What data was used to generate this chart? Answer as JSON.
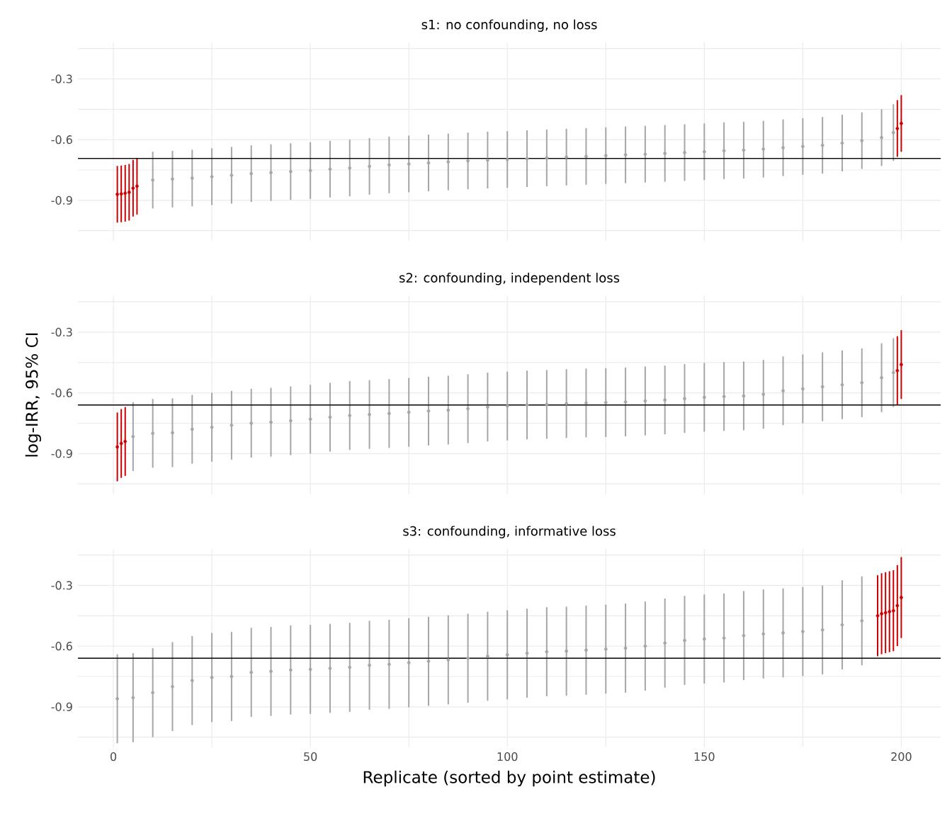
{
  "chart_data": [
    {
      "type": "scatter",
      "title": "s1: no confounding, no loss",
      "xlim": [
        -9,
        210
      ],
      "ylim": [
        -1.1,
        -0.12
      ],
      "xticks": [
        0,
        {
          "value": 25,
          "label": null
        },
        50,
        {
          "value": 75,
          "label": null
        },
        100,
        {
          "value": 125,
          "label": null
        },
        150,
        {
          "value": 175,
          "label": null
        },
        200
      ],
      "yticks": [
        {
          "value": -1.05,
          "label": null
        },
        -0.9,
        {
          "value": -0.75,
          "label": null
        },
        -0.6,
        {
          "value": -0.45,
          "label": null
        },
        -0.3,
        {
          "value": -0.15,
          "label": null
        }
      ],
      "grid": true,
      "marker": "circle",
      "tick_labels": "y",
      "ref_lines": [
        {
          "axis": "y",
          "value": -0.693,
          "color": "#000000"
        }
      ],
      "series": [
        {
          "color": "#a6a6a6",
          "x": [
            10,
            15,
            20,
            25,
            30,
            35,
            40,
            45,
            50,
            55,
            60,
            65,
            70,
            75,
            80,
            85,
            90,
            95,
            100,
            105,
            110,
            115,
            120,
            125,
            130,
            135,
            140,
            145,
            150,
            155,
            160,
            165,
            170,
            175,
            180,
            185,
            190,
            195,
            198
          ],
          "values": [
            -0.8,
            -0.795,
            -0.79,
            -0.783,
            -0.776,
            -0.768,
            -0.763,
            -0.758,
            -0.753,
            -0.746,
            -0.74,
            -0.732,
            -0.725,
            -0.72,
            -0.715,
            -0.71,
            -0.705,
            -0.701,
            -0.698,
            -0.694,
            -0.69,
            -0.686,
            -0.683,
            -0.679,
            -0.675,
            -0.672,
            -0.668,
            -0.664,
            -0.66,
            -0.655,
            -0.652,
            -0.647,
            -0.64,
            -0.634,
            -0.628,
            -0.617,
            -0.605,
            -0.59,
            -0.565
          ],
          "errors": [
            0.14,
            0.14,
            0.14,
            0.14,
            0.14,
            0.14,
            0.14,
            0.14,
            0.14,
            0.14,
            0.14,
            0.14,
            0.14,
            0.14,
            0.14,
            0.14,
            0.14,
            0.14,
            0.14,
            0.14,
            0.14,
            0.14,
            0.14,
            0.14,
            0.14,
            0.14,
            0.14,
            0.14,
            0.14,
            0.14,
            0.14,
            0.14,
            0.14,
            0.14,
            0.14,
            0.14,
            0.14,
            0.14,
            0.14
          ]
        },
        {
          "color": "#cc0000",
          "x": [
            1,
            2,
            3,
            4,
            5,
            6,
            199,
            200
          ],
          "values": [
            -0.87,
            -0.868,
            -0.865,
            -0.86,
            -0.84,
            -0.83,
            -0.545,
            -0.52
          ],
          "errors": [
            0.14,
            0.14,
            0.14,
            0.14,
            0.14,
            0.14,
            0.14,
            0.14
          ]
        }
      ]
    },
    {
      "type": "scatter",
      "title": "s2: confounding, independent loss",
      "ylabel": "log-IRR, 95% CI",
      "xlim": [
        -9,
        210
      ],
      "ylim": [
        -1.1,
        -0.12
      ],
      "xticks": [
        0,
        {
          "value": 25,
          "label": null
        },
        50,
        {
          "value": 75,
          "label": null
        },
        100,
        {
          "value": 125,
          "label": null
        },
        150,
        {
          "value": 175,
          "label": null
        },
        200
      ],
      "yticks": [
        {
          "value": -1.05,
          "label": null
        },
        -0.9,
        {
          "value": -0.75,
          "label": null
        },
        -0.6,
        {
          "value": -0.45,
          "label": null
        },
        -0.3,
        {
          "value": -0.15,
          "label": null
        }
      ],
      "grid": true,
      "marker": "circle",
      "tick_labels": "y",
      "ref_lines": [
        {
          "axis": "y",
          "value": -0.66,
          "color": "#000000"
        }
      ],
      "series": [
        {
          "color": "#a6a6a6",
          "x": [
            5,
            10,
            15,
            20,
            25,
            30,
            35,
            40,
            45,
            50,
            55,
            60,
            65,
            70,
            75,
            80,
            85,
            90,
            95,
            100,
            105,
            110,
            115,
            120,
            125,
            130,
            135,
            140,
            145,
            150,
            155,
            160,
            165,
            170,
            175,
            180,
            185,
            190,
            195,
            198
          ],
          "values": [
            -0.816,
            -0.8,
            -0.797,
            -0.78,
            -0.77,
            -0.76,
            -0.75,
            -0.745,
            -0.738,
            -0.73,
            -0.72,
            -0.712,
            -0.707,
            -0.702,
            -0.696,
            -0.69,
            -0.685,
            -0.678,
            -0.67,
            -0.665,
            -0.66,
            -0.657,
            -0.653,
            -0.65,
            -0.648,
            -0.645,
            -0.64,
            -0.635,
            -0.628,
            -0.622,
            -0.618,
            -0.615,
            -0.607,
            -0.59,
            -0.58,
            -0.57,
            -0.56,
            -0.55,
            -0.525,
            -0.5
          ],
          "errors": [
            0.17,
            0.17,
            0.17,
            0.17,
            0.17,
            0.17,
            0.17,
            0.17,
            0.17,
            0.17,
            0.17,
            0.17,
            0.17,
            0.17,
            0.17,
            0.17,
            0.17,
            0.17,
            0.17,
            0.17,
            0.17,
            0.17,
            0.17,
            0.17,
            0.17,
            0.17,
            0.17,
            0.17,
            0.17,
            0.17,
            0.17,
            0.17,
            0.17,
            0.17,
            0.17,
            0.17,
            0.17,
            0.17,
            0.17,
            0.17
          ]
        },
        {
          "color": "#cc0000",
          "x": [
            1,
            2,
            3,
            199,
            200
          ],
          "values": [
            -0.867,
            -0.85,
            -0.84,
            -0.49,
            -0.46
          ],
          "errors": [
            0.17,
            0.17,
            0.17,
            0.17,
            0.17
          ]
        }
      ]
    },
    {
      "type": "scatter",
      "title": "s3: confounding, informative loss",
      "xlabel": "Replicate (sorted by point estimate)",
      "xlim": [
        -9,
        210
      ],
      "ylim": [
        -1.1,
        -0.12
      ],
      "xticks": [
        0,
        {
          "value": 25,
          "label": null
        },
        50,
        {
          "value": 75,
          "label": null
        },
        100,
        {
          "value": 125,
          "label": null
        },
        150,
        {
          "value": 175,
          "label": null
        },
        200
      ],
      "yticks": [
        {
          "value": -1.05,
          "label": null
        },
        -0.9,
        {
          "value": -0.75,
          "label": null
        },
        -0.6,
        {
          "value": -0.45,
          "label": null
        },
        -0.3,
        {
          "value": -0.15,
          "label": null
        }
      ],
      "grid": true,
      "marker": "circle",
      "ref_lines": [
        {
          "axis": "y",
          "value": -0.66,
          "color": "#000000"
        }
      ],
      "series": [
        {
          "color": "#a6a6a6",
          "x": [
            1,
            5,
            10,
            15,
            20,
            25,
            30,
            35,
            40,
            45,
            50,
            55,
            60,
            65,
            70,
            75,
            80,
            85,
            90,
            95,
            100,
            105,
            110,
            115,
            120,
            125,
            130,
            135,
            140,
            145,
            150,
            155,
            160,
            165,
            170,
            175,
            180,
            185,
            190
          ],
          "values": [
            -0.86,
            -0.855,
            -0.83,
            -0.8,
            -0.77,
            -0.755,
            -0.75,
            -0.73,
            -0.725,
            -0.718,
            -0.715,
            -0.71,
            -0.705,
            -0.695,
            -0.69,
            -0.682,
            -0.675,
            -0.668,
            -0.66,
            -0.65,
            -0.643,
            -0.635,
            -0.628,
            -0.625,
            -0.62,
            -0.615,
            -0.61,
            -0.6,
            -0.585,
            -0.572,
            -0.565,
            -0.56,
            -0.548,
            -0.54,
            -0.535,
            -0.528,
            -0.52,
            -0.495,
            -0.475
          ],
          "errors": [
            0.22,
            0.22,
            0.22,
            0.22,
            0.22,
            0.22,
            0.22,
            0.22,
            0.22,
            0.22,
            0.22,
            0.22,
            0.22,
            0.22,
            0.22,
            0.22,
            0.22,
            0.22,
            0.22,
            0.22,
            0.22,
            0.22,
            0.22,
            0.22,
            0.22,
            0.22,
            0.22,
            0.22,
            0.22,
            0.22,
            0.22,
            0.22,
            0.22,
            0.22,
            0.22,
            0.22,
            0.22,
            0.22,
            0.22
          ]
        },
        {
          "color": "#cc0000",
          "x": [
            194,
            195,
            196,
            197,
            198,
            199,
            200
          ],
          "values": [
            -0.45,
            -0.44,
            -0.435,
            -0.43,
            -0.425,
            -0.4,
            -0.36
          ],
          "errors": [
            0.2,
            0.2,
            0.2,
            0.2,
            0.2,
            0.2,
            0.2
          ]
        }
      ]
    }
  ]
}
